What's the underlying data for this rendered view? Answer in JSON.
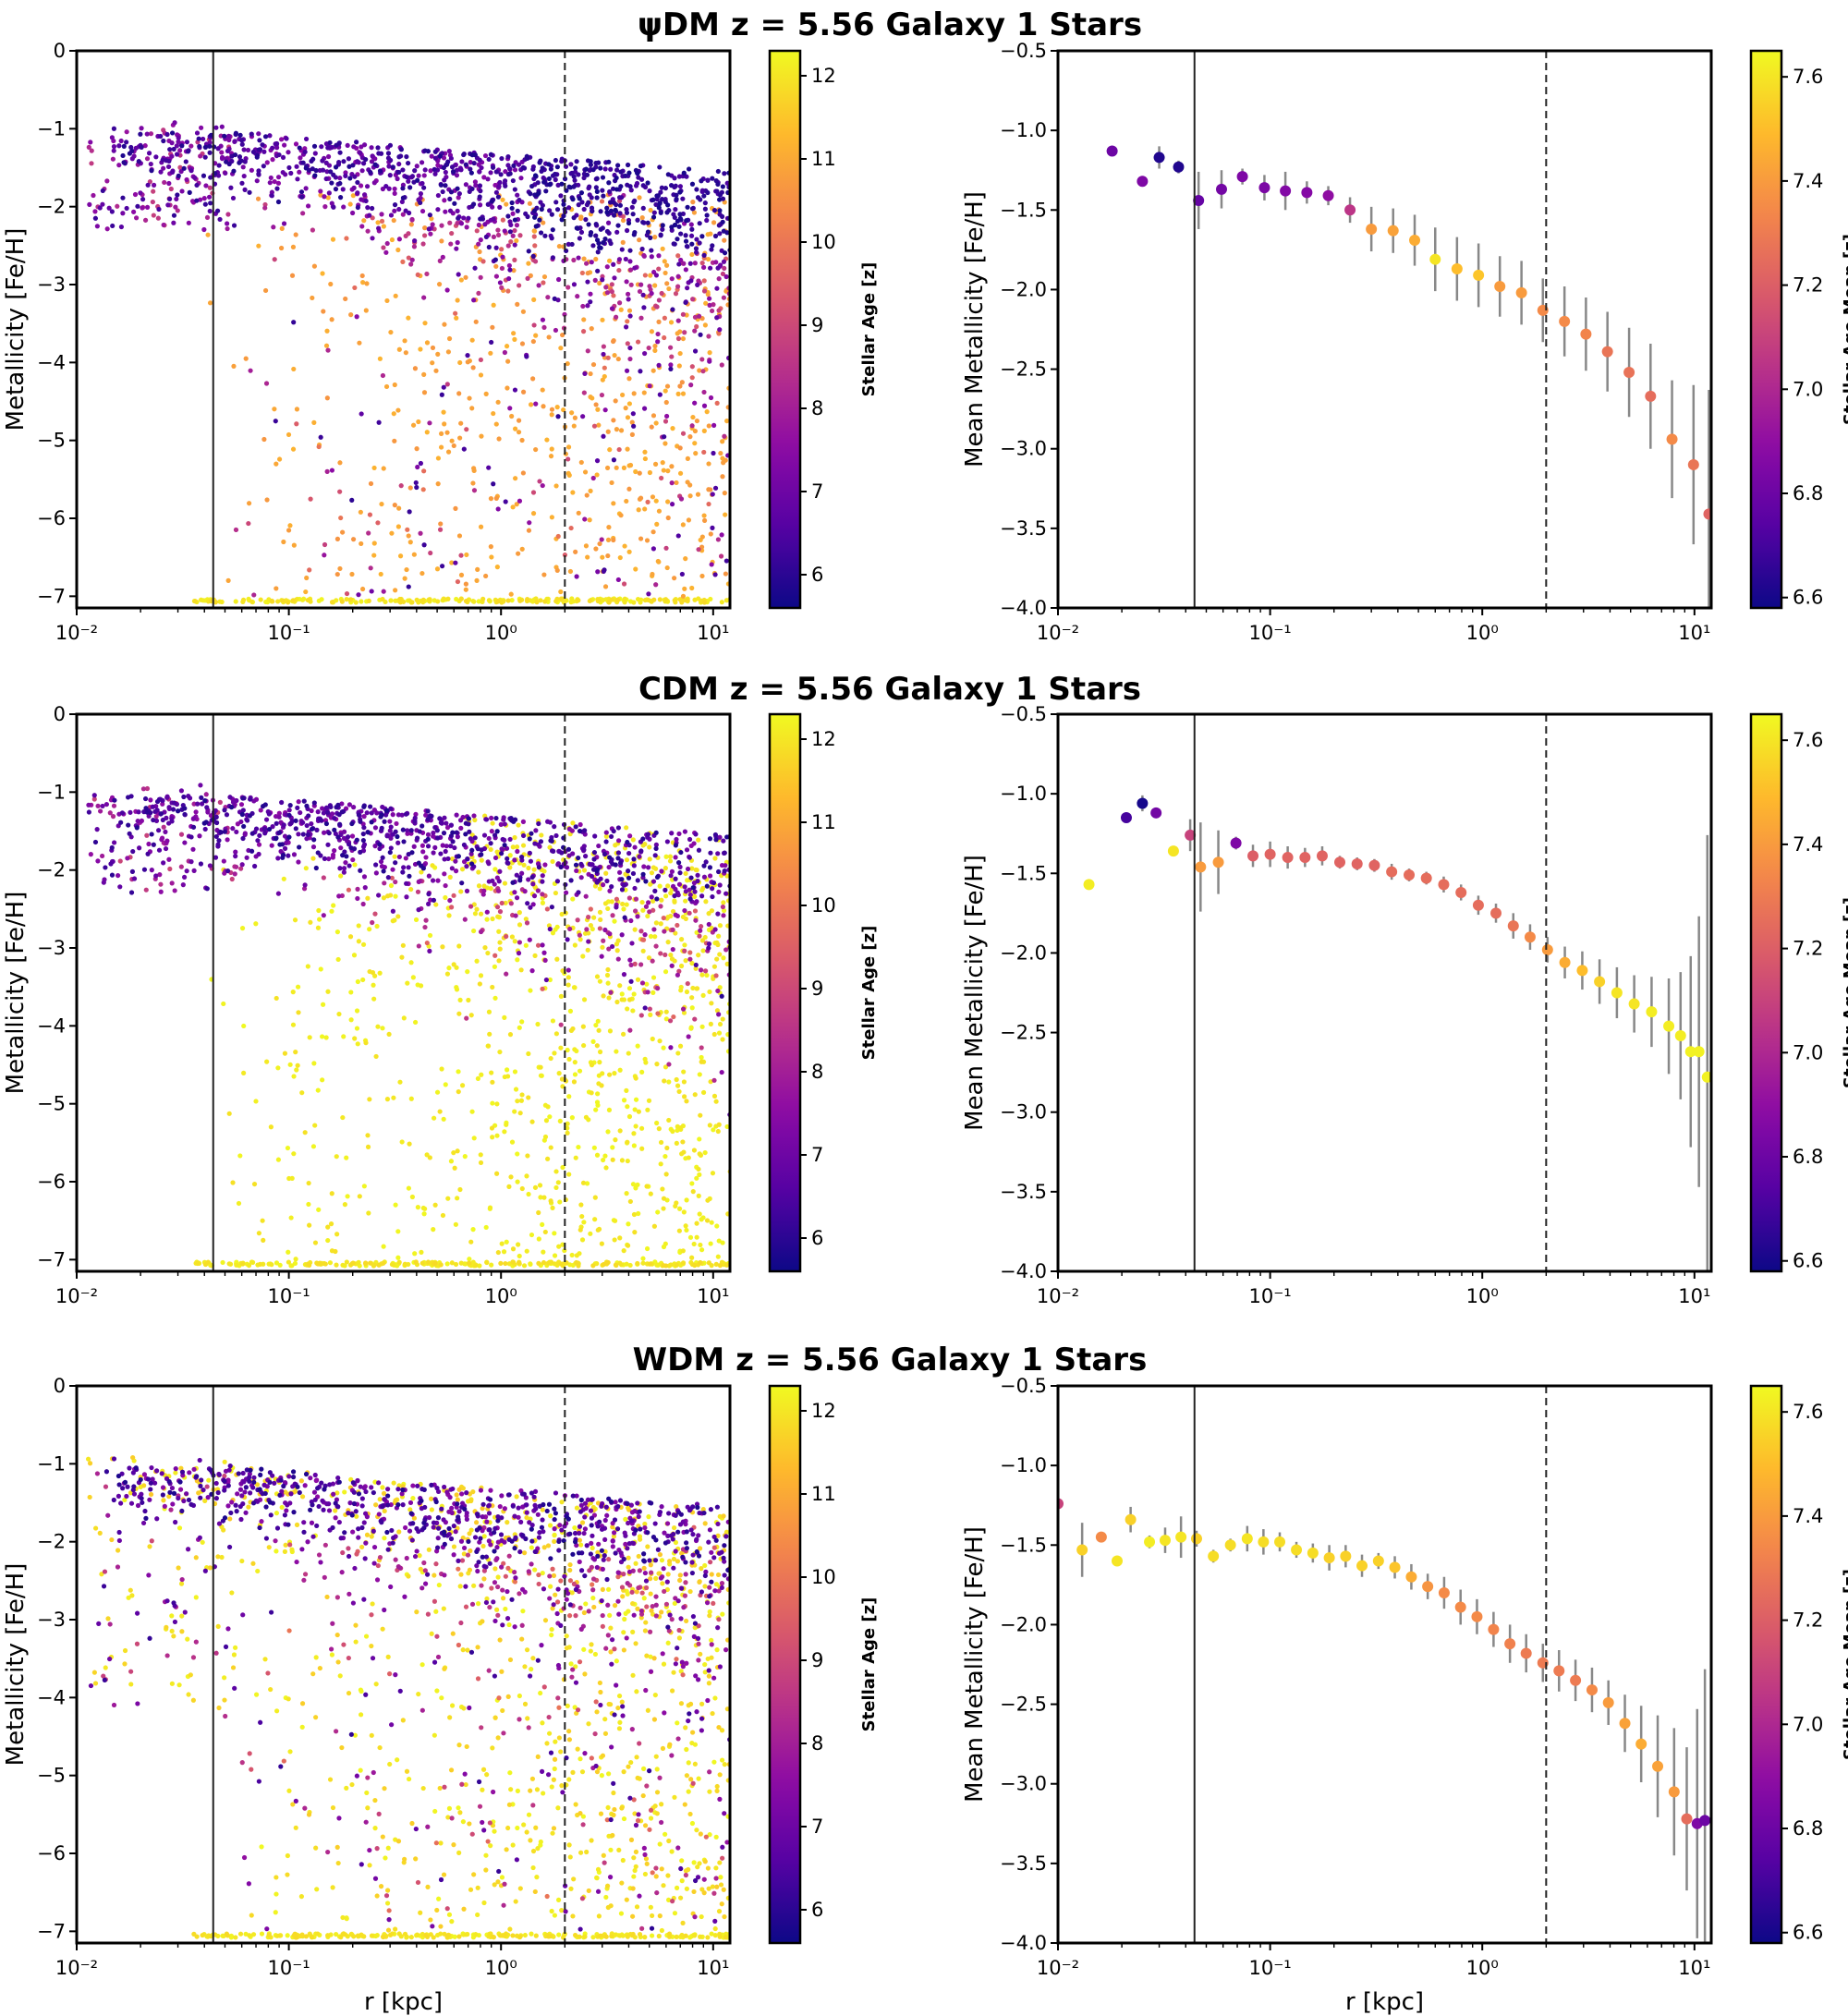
{
  "figure": {
    "rows": [
      {
        "title": "ψDM z = 5.56 Galaxy 1 Stars",
        "scatter": {
          "ylabel": "Metallicity [Fe/H]",
          "xlabel": "",
          "colorbar_label": "Stellar Age [z]",
          "cb_ticks": [
            "6",
            "7",
            "8",
            "9",
            "10",
            "11",
            "12"
          ],
          "seed": 11,
          "variant": "psi"
        },
        "mean": {
          "ylabel": "Mean Metallicity [Fe/H]",
          "xlabel": "",
          "colorbar_label": "Stellar Age Mean [z]",
          "cb_ticks": [
            "6.6",
            "6.8",
            "7.0",
            "7.2",
            "7.4",
            "7.6"
          ]
        }
      },
      {
        "title": "CDM z = 5.56 Galaxy 1 Stars",
        "scatter": {
          "ylabel": "Metallicity [Fe/H]",
          "xlabel": "",
          "colorbar_label": "Stellar Age [z]",
          "cb_ticks": [
            "6",
            "7",
            "8",
            "9",
            "10",
            "11",
            "12"
          ],
          "seed": 23,
          "variant": "cdm"
        },
        "mean": {
          "ylabel": "Mean Metallicity [Fe/H]",
          "xlabel": "",
          "colorbar_label": "Stellar Age Mean [z]",
          "cb_ticks": [
            "6.6",
            "6.8",
            "7.0",
            "7.2",
            "7.4",
            "7.6"
          ]
        }
      },
      {
        "title": "WDM z = 5.56 Galaxy 1 Stars",
        "scatter": {
          "ylabel": "Metallicity [Fe/H]",
          "xlabel": "r [kpc]",
          "colorbar_label": "Stellar Age [z]",
          "cb_ticks": [
            "6",
            "7",
            "8",
            "9",
            "10",
            "11",
            "12"
          ],
          "seed": 37,
          "variant": "wdm"
        },
        "mean": {
          "ylabel": "Mean Metallicity [Fe/H]",
          "xlabel": "r [kpc]",
          "colorbar_label": "Stellar Age Mean [z]",
          "cb_ticks": [
            "6.6",
            "6.8",
            "7.0",
            "7.2",
            "7.4",
            "7.6"
          ]
        }
      }
    ]
  },
  "chart_data": [
    {
      "type": "scatter",
      "panel": "ψDM stars",
      "title": "ψDM z = 5.56 Galaxy 1 Stars",
      "xlabel": "",
      "ylabel": "Metallicity [Fe/H]",
      "xscale": "log",
      "xlim": [
        0.01,
        12
      ],
      "ylim": [
        -7.15,
        0
      ],
      "xticks": [
        "10⁻²",
        "10⁻¹",
        "10⁰",
        "10¹"
      ],
      "yticks": [
        "0",
        "−1",
        "−2",
        "−3",
        "−4",
        "−5",
        "−6",
        "−7"
      ],
      "colorbar": {
        "label": "Stellar Age [z]",
        "range": [
          5.6,
          12.3
        ],
        "cmap": "plasma"
      },
      "vlines": [
        {
          "x": 0.044,
          "style": "solid"
        },
        {
          "x": 2.0,
          "style": "dashed"
        }
      ]
    },
    {
      "type": "scatter",
      "panel": "ψDM mean",
      "xlabel": "",
      "ylabel": "Mean Metallicity [Fe/H]",
      "xscale": "log",
      "xlim": [
        0.01,
        12
      ],
      "ylim": [
        -4.0,
        -0.5
      ],
      "xticks": [
        "10⁻²",
        "10⁻¹",
        "10⁰",
        "10¹"
      ],
      "yticks": [
        "−0.5",
        "−1.0",
        "−1.5",
        "−2.0",
        "−2.5",
        "−3.0",
        "−3.5",
        "−4.0"
      ],
      "colorbar": {
        "label": "Stellar Age Mean [z]",
        "range": [
          6.58,
          7.65
        ],
        "cmap": "plasma"
      },
      "vlines": [
        {
          "x": 0.044,
          "style": "solid"
        },
        {
          "x": 2.0,
          "style": "dashed"
        }
      ],
      "points": [
        {
          "x": 0.018,
          "y": -1.13,
          "err": 0.0,
          "c": 6.8
        },
        {
          "x": 0.025,
          "y": -1.32,
          "err": 0.03,
          "c": 6.85
        },
        {
          "x": 0.03,
          "y": -1.17,
          "err": 0.07,
          "c": 6.62
        },
        {
          "x": 0.037,
          "y": -1.23,
          "err": 0.04,
          "c": 6.62
        },
        {
          "x": 0.046,
          "y": -1.44,
          "err": 0.18,
          "c": 6.78
        },
        {
          "x": 0.059,
          "y": -1.37,
          "err": 0.12,
          "c": 6.82
        },
        {
          "x": 0.074,
          "y": -1.29,
          "err": 0.05,
          "c": 6.85
        },
        {
          "x": 0.094,
          "y": -1.36,
          "err": 0.08,
          "c": 6.84
        },
        {
          "x": 0.118,
          "y": -1.38,
          "err": 0.12,
          "c": 6.86
        },
        {
          "x": 0.149,
          "y": -1.39,
          "err": 0.07,
          "c": 6.87
        },
        {
          "x": 0.188,
          "y": -1.41,
          "err": 0.06,
          "c": 6.9
        },
        {
          "x": 0.238,
          "y": -1.5,
          "err": 0.08,
          "c": 7.05
        },
        {
          "x": 0.3,
          "y": -1.62,
          "err": 0.14,
          "c": 7.4
        },
        {
          "x": 0.38,
          "y": -1.63,
          "err": 0.14,
          "c": 7.42
        },
        {
          "x": 0.48,
          "y": -1.69,
          "err": 0.16,
          "c": 7.45
        },
        {
          "x": 0.6,
          "y": -1.81,
          "err": 0.2,
          "c": 7.6
        },
        {
          "x": 0.76,
          "y": -1.87,
          "err": 0.2,
          "c": 7.5
        },
        {
          "x": 0.96,
          "y": -1.91,
          "err": 0.2,
          "c": 7.52
        },
        {
          "x": 1.21,
          "y": -1.98,
          "err": 0.19,
          "c": 7.4
        },
        {
          "x": 1.53,
          "y": -2.02,
          "err": 0.2,
          "c": 7.4
        },
        {
          "x": 1.93,
          "y": -2.13,
          "err": 0.2,
          "c": 7.35
        },
        {
          "x": 2.44,
          "y": -2.2,
          "err": 0.22,
          "c": 7.35
        },
        {
          "x": 3.08,
          "y": -2.28,
          "err": 0.23,
          "c": 7.33
        },
        {
          "x": 3.89,
          "y": -2.39,
          "err": 0.25,
          "c": 7.28
        },
        {
          "x": 4.92,
          "y": -2.52,
          "err": 0.28,
          "c": 7.27
        },
        {
          "x": 6.21,
          "y": -2.67,
          "err": 0.33,
          "c": 7.25
        },
        {
          "x": 7.84,
          "y": -2.94,
          "err": 0.37,
          "c": 7.35
        },
        {
          "x": 9.9,
          "y": -3.1,
          "err": 0.5,
          "c": 7.28
        },
        {
          "x": 11.7,
          "y": -3.41,
          "err": 0.78,
          "c": 7.22
        }
      ]
    },
    {
      "type": "scatter",
      "panel": "CDM stars",
      "title": "CDM z = 5.56 Galaxy 1 Stars",
      "xlabel": "",
      "ylabel": "Metallicity [Fe/H]",
      "xscale": "log",
      "xlim": [
        0.01,
        12
      ],
      "ylim": [
        -7.15,
        0
      ],
      "xticks": [
        "10⁻²",
        "10⁻¹",
        "10⁰",
        "10¹"
      ],
      "yticks": [
        "0",
        "−1",
        "−2",
        "−3",
        "−4",
        "−5",
        "−6",
        "−7"
      ],
      "colorbar": {
        "label": "Stellar Age [z]",
        "range": [
          5.6,
          12.3
        ],
        "cmap": "plasma"
      },
      "vlines": [
        {
          "x": 0.044,
          "style": "solid"
        },
        {
          "x": 2.0,
          "style": "dashed"
        }
      ]
    },
    {
      "type": "scatter",
      "panel": "CDM mean",
      "xlabel": "",
      "ylabel": "Mean Metallicity [Fe/H]",
      "xscale": "log",
      "xlim": [
        0.01,
        12
      ],
      "ylim": [
        -4.0,
        -0.5
      ],
      "xticks": [
        "10⁻²",
        "10⁻¹",
        "10⁰",
        "10¹"
      ],
      "yticks": [
        "−0.5",
        "−1.0",
        "−1.5",
        "−2.0",
        "−2.5",
        "−3.0",
        "−3.5",
        "−4.0"
      ],
      "colorbar": {
        "label": "Stellar Age Mean [z]",
        "range": [
          6.58,
          7.65
        ],
        "cmap": "plasma"
      },
      "vlines": [
        {
          "x": 0.044,
          "style": "solid"
        },
        {
          "x": 2.0,
          "style": "dashed"
        }
      ],
      "points": [
        {
          "x": 0.014,
          "y": -1.57,
          "err": 0.0,
          "c": 7.62
        },
        {
          "x": 0.021,
          "y": -1.15,
          "err": 0.0,
          "c": 6.7
        },
        {
          "x": 0.025,
          "y": -1.06,
          "err": 0.05,
          "c": 6.6
        },
        {
          "x": 0.029,
          "y": -1.12,
          "err": 0.02,
          "c": 6.82
        },
        {
          "x": 0.035,
          "y": -1.36,
          "err": 0.0,
          "c": 7.6
        },
        {
          "x": 0.042,
          "y": -1.26,
          "err": 0.1,
          "c": 7.1
        },
        {
          "x": 0.047,
          "y": -1.46,
          "err": 0.28,
          "c": 7.4
        },
        {
          "x": 0.057,
          "y": -1.43,
          "err": 0.2,
          "c": 7.4
        },
        {
          "x": 0.069,
          "y": -1.31,
          "err": 0.04,
          "c": 6.85
        },
        {
          "x": 0.083,
          "y": -1.39,
          "err": 0.07,
          "c": 7.2
        },
        {
          "x": 0.1,
          "y": -1.38,
          "err": 0.08,
          "c": 7.22
        },
        {
          "x": 0.121,
          "y": -1.4,
          "err": 0.07,
          "c": 7.22
        },
        {
          "x": 0.146,
          "y": -1.4,
          "err": 0.06,
          "c": 7.22
        },
        {
          "x": 0.176,
          "y": -1.39,
          "err": 0.06,
          "c": 7.22
        },
        {
          "x": 0.213,
          "y": -1.43,
          "err": 0.04,
          "c": 7.22
        },
        {
          "x": 0.257,
          "y": -1.44,
          "err": 0.04,
          "c": 7.22
        },
        {
          "x": 0.31,
          "y": -1.45,
          "err": 0.04,
          "c": 7.22
        },
        {
          "x": 0.374,
          "y": -1.49,
          "err": 0.05,
          "c": 7.25
        },
        {
          "x": 0.452,
          "y": -1.51,
          "err": 0.04,
          "c": 7.25
        },
        {
          "x": 0.545,
          "y": -1.53,
          "err": 0.04,
          "c": 7.25
        },
        {
          "x": 0.658,
          "y": -1.57,
          "err": 0.05,
          "c": 7.25
        },
        {
          "x": 0.794,
          "y": -1.62,
          "err": 0.05,
          "c": 7.25
        },
        {
          "x": 0.958,
          "y": -1.7,
          "err": 0.06,
          "c": 7.25
        },
        {
          "x": 1.16,
          "y": -1.75,
          "err": 0.06,
          "c": 7.25
        },
        {
          "x": 1.4,
          "y": -1.83,
          "err": 0.08,
          "c": 7.28
        },
        {
          "x": 1.68,
          "y": -1.9,
          "err": 0.08,
          "c": 7.35
        },
        {
          "x": 2.03,
          "y": -1.98,
          "err": 0.08,
          "c": 7.4
        },
        {
          "x": 2.45,
          "y": -2.06,
          "err": 0.1,
          "c": 7.45
        },
        {
          "x": 2.96,
          "y": -2.11,
          "err": 0.12,
          "c": 7.5
        },
        {
          "x": 3.57,
          "y": -2.18,
          "err": 0.14,
          "c": 7.55
        },
        {
          "x": 4.31,
          "y": -2.25,
          "err": 0.16,
          "c": 7.6
        },
        {
          "x": 5.2,
          "y": -2.32,
          "err": 0.18,
          "c": 7.6
        },
        {
          "x": 6.28,
          "y": -2.37,
          "err": 0.22,
          "c": 7.62
        },
        {
          "x": 7.57,
          "y": -2.46,
          "err": 0.3,
          "c": 7.62
        },
        {
          "x": 8.6,
          "y": -2.52,
          "err": 0.4,
          "c": 7.62
        },
        {
          "x": 9.6,
          "y": -2.62,
          "err": 0.6,
          "c": 7.63
        },
        {
          "x": 10.5,
          "y": -2.62,
          "err": 0.85,
          "c": 7.63
        },
        {
          "x": 11.5,
          "y": -2.78,
          "err": 1.52,
          "c": 7.63
        }
      ]
    },
    {
      "type": "scatter",
      "panel": "WDM stars",
      "title": "WDM z = 5.56 Galaxy 1 Stars",
      "xlabel": "r [kpc]",
      "ylabel": "Metallicity [Fe/H]",
      "xscale": "log",
      "xlim": [
        0.01,
        12
      ],
      "ylim": [
        -7.15,
        0
      ],
      "xticks": [
        "10⁻²",
        "10⁻¹",
        "10⁰",
        "10¹"
      ],
      "yticks": [
        "0",
        "−1",
        "−2",
        "−3",
        "−4",
        "−5",
        "−6",
        "−7"
      ],
      "colorbar": {
        "label": "Stellar Age [z]",
        "range": [
          5.6,
          12.3
        ],
        "cmap": "plasma"
      },
      "vlines": [
        {
          "x": 0.044,
          "style": "solid"
        },
        {
          "x": 2.0,
          "style": "dashed"
        }
      ]
    },
    {
      "type": "scatter",
      "panel": "WDM mean",
      "xlabel": "r [kpc]",
      "ylabel": "Mean Metallicity [Fe/H]",
      "xscale": "log",
      "xlim": [
        0.01,
        12
      ],
      "ylim": [
        -4.0,
        -0.5
      ],
      "xticks": [
        "10⁻²",
        "10⁻¹",
        "10⁰",
        "10¹"
      ],
      "yticks": [
        "−0.5",
        "−1.0",
        "−1.5",
        "−2.0",
        "−2.5",
        "−3.0",
        "−3.5",
        "−4.0"
      ],
      "colorbar": {
        "label": "Stellar Age Mean [z]",
        "range": [
          6.58,
          7.65
        ],
        "cmap": "plasma"
      },
      "vlines": [
        {
          "x": 0.044,
          "style": "solid"
        },
        {
          "x": 2.0,
          "style": "dashed"
        }
      ],
      "points": [
        {
          "x": 0.01,
          "y": -1.24,
          "err": 0.0,
          "c": 7.1
        },
        {
          "x": 0.013,
          "y": -1.53,
          "err": 0.17,
          "c": 7.55
        },
        {
          "x": 0.016,
          "y": -1.45,
          "err": 0.03,
          "c": 7.35
        },
        {
          "x": 0.019,
          "y": -1.6,
          "err": 0.0,
          "c": 7.6
        },
        {
          "x": 0.022,
          "y": -1.34,
          "err": 0.08,
          "c": 7.55
        },
        {
          "x": 0.027,
          "y": -1.48,
          "err": 0.04,
          "c": 7.62
        },
        {
          "x": 0.032,
          "y": -1.47,
          "err": 0.08,
          "c": 7.6
        },
        {
          "x": 0.038,
          "y": -1.45,
          "err": 0.13,
          "c": 7.6
        },
        {
          "x": 0.045,
          "y": -1.46,
          "err": 0.05,
          "c": 7.55
        },
        {
          "x": 0.054,
          "y": -1.57,
          "err": 0.04,
          "c": 7.58
        },
        {
          "x": 0.065,
          "y": -1.5,
          "err": 0.04,
          "c": 7.58
        },
        {
          "x": 0.078,
          "y": -1.46,
          "err": 0.08,
          "c": 7.6
        },
        {
          "x": 0.093,
          "y": -1.48,
          "err": 0.08,
          "c": 7.58
        },
        {
          "x": 0.111,
          "y": -1.48,
          "err": 0.06,
          "c": 7.58
        },
        {
          "x": 0.133,
          "y": -1.53,
          "err": 0.05,
          "c": 7.58
        },
        {
          "x": 0.159,
          "y": -1.55,
          "err": 0.06,
          "c": 7.58
        },
        {
          "x": 0.19,
          "y": -1.58,
          "err": 0.08,
          "c": 7.55
        },
        {
          "x": 0.227,
          "y": -1.57,
          "err": 0.07,
          "c": 7.55
        },
        {
          "x": 0.271,
          "y": -1.63,
          "err": 0.07,
          "c": 7.55
        },
        {
          "x": 0.324,
          "y": -1.6,
          "err": 0.05,
          "c": 7.55
        },
        {
          "x": 0.387,
          "y": -1.64,
          "err": 0.07,
          "c": 7.52
        },
        {
          "x": 0.463,
          "y": -1.7,
          "err": 0.08,
          "c": 7.45
        },
        {
          "x": 0.553,
          "y": -1.76,
          "err": 0.08,
          "c": 7.38
        },
        {
          "x": 0.661,
          "y": -1.8,
          "err": 0.1,
          "c": 7.35
        },
        {
          "x": 0.79,
          "y": -1.89,
          "err": 0.11,
          "c": 7.35
        },
        {
          "x": 0.944,
          "y": -1.95,
          "err": 0.11,
          "c": 7.35
        },
        {
          "x": 1.13,
          "y": -2.03,
          "err": 0.11,
          "c": 7.33
        },
        {
          "x": 1.35,
          "y": -2.12,
          "err": 0.12,
          "c": 7.32
        },
        {
          "x": 1.61,
          "y": -2.18,
          "err": 0.12,
          "c": 7.3
        },
        {
          "x": 1.93,
          "y": -2.24,
          "err": 0.12,
          "c": 7.3
        },
        {
          "x": 2.3,
          "y": -2.29,
          "err": 0.13,
          "c": 7.3
        },
        {
          "x": 2.75,
          "y": -2.35,
          "err": 0.13,
          "c": 7.3
        },
        {
          "x": 3.29,
          "y": -2.41,
          "err": 0.14,
          "c": 7.35
        },
        {
          "x": 3.93,
          "y": -2.49,
          "err": 0.14,
          "c": 7.4
        },
        {
          "x": 4.7,
          "y": -2.62,
          "err": 0.18,
          "c": 7.42
        },
        {
          "x": 5.61,
          "y": -2.75,
          "err": 0.24,
          "c": 7.45
        },
        {
          "x": 6.71,
          "y": -2.89,
          "err": 0.32,
          "c": 7.42
        },
        {
          "x": 8.02,
          "y": -3.05,
          "err": 0.4,
          "c": 7.4
        },
        {
          "x": 9.2,
          "y": -3.22,
          "err": 0.45,
          "c": 7.25
        },
        {
          "x": 10.3,
          "y": -3.25,
          "err": 0.72,
          "c": 6.85
        },
        {
          "x": 11.2,
          "y": -3.23,
          "err": 0.95,
          "c": 6.8
        }
      ]
    }
  ]
}
